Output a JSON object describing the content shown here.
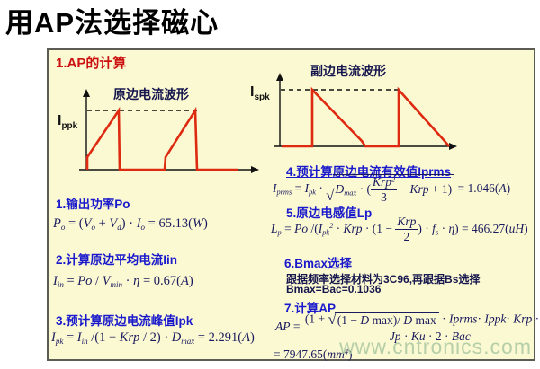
{
  "slide_title": "用AP法选择磁心",
  "panel": {
    "heading": "1.AP的计算",
    "primary_waveform": {
      "title": "原边电流波形",
      "label_base": "I",
      "label_sub": "ppk"
    },
    "secondary_waveform": {
      "title": "副边电流波形",
      "label_base": "I",
      "label_sub": "spk"
    },
    "sections": {
      "s1": {
        "heading": "1.输出功率Po"
      },
      "s2": {
        "heading": "2.计算原边平均电流Iin"
      },
      "s3": {
        "heading": "3.预计算原边电流峰值Ipk"
      },
      "s4": {
        "heading": "4.预计算原边电流有效值Iprms"
      },
      "s5": {
        "heading": "5.原边电感值Lp"
      },
      "s6": {
        "heading": "6.Bmax选择",
        "note_line1": "跟据频率选择材料为3C96,再跟据Bs选择",
        "note_line2": "Bmax=Bac=0.1036"
      },
      "s7": {
        "heading": "7.计算AP"
      }
    },
    "formulas": {
      "po": [
        {
          "t": "P"
        },
        {
          "t": "o",
          "v": "sub"
        },
        {
          "t": " = (",
          "v": "up"
        },
        {
          "t": "V"
        },
        {
          "t": "o",
          "v": "sub"
        },
        {
          "t": " + ",
          "v": "up"
        },
        {
          "t": "V"
        },
        {
          "t": "d",
          "v": "sub"
        },
        {
          "t": ") · ",
          "v": "up"
        },
        {
          "t": "I"
        },
        {
          "t": "o",
          "v": "sub"
        },
        {
          "t": " = 65.13(",
          "v": "up"
        },
        {
          "t": "W"
        },
        {
          "t": ")",
          "v": "up"
        }
      ],
      "iin": [
        {
          "t": "I"
        },
        {
          "t": "in",
          "v": "sub"
        },
        {
          "t": " = ",
          "v": "up"
        },
        {
          "t": "Po"
        },
        {
          "t": " / ",
          "v": "up"
        },
        {
          "t": "V"
        },
        {
          "t": "min",
          "v": "sub"
        },
        {
          "t": " · ",
          "v": "up"
        },
        {
          "t": "η"
        },
        {
          "t": " = 0.67(",
          "v": "up"
        },
        {
          "t": "A"
        },
        {
          "t": ")",
          "v": "up"
        }
      ],
      "ipk": [
        {
          "t": "I"
        },
        {
          "t": "pk",
          "v": "sub"
        },
        {
          "t": " = ",
          "v": "up"
        },
        {
          "t": "I"
        },
        {
          "t": "in",
          "v": "sub"
        },
        {
          "t": " /(1 − ",
          "v": "up"
        },
        {
          "t": "Krp"
        },
        {
          "t": " / 2) · ",
          "v": "up"
        },
        {
          "t": "D"
        },
        {
          "t": "max",
          "v": "sub"
        },
        {
          "t": " = 2.291(",
          "v": "up"
        },
        {
          "t": "A"
        },
        {
          "t": ")",
          "v": "up"
        }
      ],
      "iprms": [
        {
          "t": "I"
        },
        {
          "t": "prms",
          "v": "sub"
        },
        {
          "t": " = ",
          "v": "up"
        },
        {
          "t": "I"
        },
        {
          "t": "pk",
          "v": "sub"
        },
        {
          "t": " · ",
          "v": "up"
        },
        {
          "sqrt": [
            {
              "t": "D"
            },
            {
              "t": "max",
              "v": "sub"
            },
            {
              "t": " · (",
              "v": "up"
            },
            {
              "frac": {
                "n": [
                  {
                    "t": "Krp"
                  },
                  {
                    "t": "2",
                    "v": "sup"
                  }
                ],
                "d": [
                  {
                    "t": "3",
                    "v": "up"
                  }
                ]
              }
            },
            {
              "t": " − ",
              "v": "up"
            },
            {
              "t": "Krp"
            },
            {
              "t": " + 1)",
              "v": "up"
            }
          ]
        },
        {
          "t": " = 1.046(",
          "v": "up"
        },
        {
          "t": "A"
        },
        {
          "t": ")",
          "v": "up"
        }
      ],
      "lp": [
        {
          "t": "L"
        },
        {
          "t": "p",
          "v": "sub"
        },
        {
          "t": " = ",
          "v": "up"
        },
        {
          "t": "Po"
        },
        {
          "t": " /(",
          "v": "up"
        },
        {
          "t": "I"
        },
        {
          "t": "pk",
          "v": "sub"
        },
        {
          "t": "2",
          "v": "sup"
        },
        {
          "t": " · ",
          "v": "up"
        },
        {
          "t": "Krp"
        },
        {
          "t": " · (1 − ",
          "v": "up"
        },
        {
          "frac": {
            "n": [
              {
                "t": "Krp"
              }
            ],
            "d": [
              {
                "t": "2",
                "v": "up"
              }
            ]
          }
        },
        {
          "t": ") · ",
          "v": "up"
        },
        {
          "t": "f"
        },
        {
          "t": "s",
          "v": "sub"
        },
        {
          "t": " · ",
          "v": "up"
        },
        {
          "t": "η"
        },
        {
          "t": ") = 466.27(",
          "v": "up"
        },
        {
          "t": "uH"
        },
        {
          "t": ")",
          "v": "up"
        }
      ],
      "ap": [
        {
          "t": "AP"
        },
        {
          "t": " = ",
          "v": "up"
        },
        {
          "frac": {
            "n": [
              {
                "t": "(1 + ",
                "v": "up"
              },
              {
                "sqrt": [
                  {
                    "t": "(1 − ",
                    "v": "up"
                  },
                  {
                    "t": "D"
                  },
                  {
                    "t": " max)/ ",
                    "v": "up"
                  },
                  {
                    "t": "D"
                  },
                  {
                    "t": " max",
                    "v": "up"
                  }
                ]
              },
              {
                "t": " · ",
                "v": "up"
              },
              {
                "t": "Iprms"
              },
              {
                "t": "· ",
                "v": "up"
              },
              {
                "t": "Ippk"
              },
              {
                "t": "· ",
                "v": "up"
              },
              {
                "t": "Krp"
              },
              {
                "t": " · ",
                "v": "up"
              },
              {
                "t": "Lp"
              }
            ],
            "d": [
              {
                "t": "Jp"
              },
              {
                "t": " · ",
                "v": "up"
              },
              {
                "t": "Ku"
              },
              {
                "t": " · 2 · ",
                "v": "up"
              },
              {
                "t": "Bac"
              }
            ]
          }
        }
      ],
      "ap_result": [
        {
          "t": "= 7947.65(",
          "v": "up"
        },
        {
          "t": "mm"
        },
        {
          "t": "4",
          "v": "sup"
        },
        {
          "t": ")",
          "v": "up"
        }
      ]
    },
    "watermark": "www.cntronics.com"
  },
  "colors": {
    "accent-red": "#cc1111",
    "heading-blue": "#1a1acc",
    "formula-navy": "#1a1a5e",
    "waveform-red": "#dd2a10",
    "panel-bg": "#fbf9d2",
    "panel-border": "#5c5c54",
    "note-navy": "#16164e",
    "watermark-green": "#aac8a2"
  }
}
